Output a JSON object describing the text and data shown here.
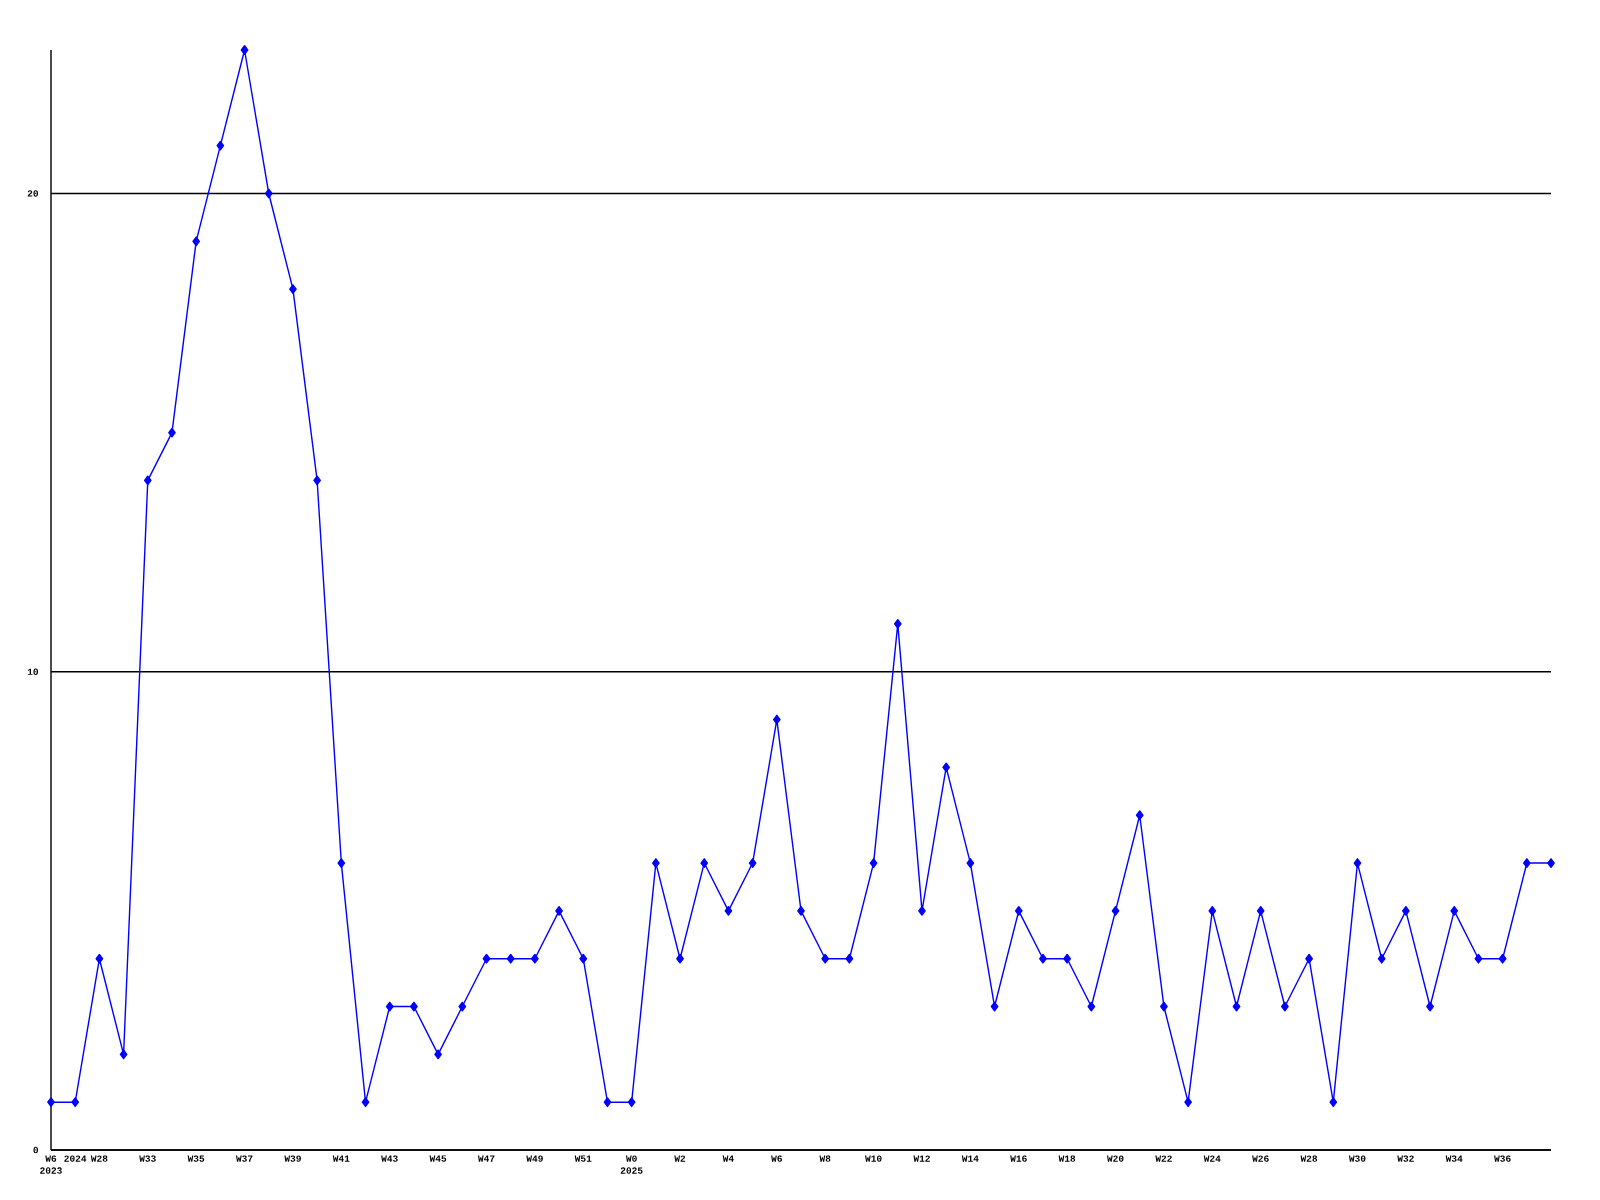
{
  "chart_data": {
    "type": "line",
    "categories": [
      "W6 2023",
      "2024",
      "W28",
      null,
      "W33",
      null,
      "W35",
      null,
      "W37",
      null,
      "W39",
      null,
      "W41",
      null,
      "W43",
      null,
      "W45",
      null,
      "W47",
      null,
      "W49",
      null,
      "W51",
      null,
      "W0 2025",
      null,
      "W2",
      null,
      "W4",
      null,
      "W6",
      null,
      "W8",
      null,
      "W10",
      null,
      "W12",
      null,
      "W14",
      null,
      "W16",
      null,
      "W18",
      null,
      "W20",
      null,
      "W22",
      null,
      "W24",
      null,
      "W26",
      null,
      "W28",
      null,
      "W30",
      null,
      "W32",
      null,
      "W34",
      null,
      "W36",
      null,
      null
    ],
    "values": [
      1,
      1,
      4,
      2,
      14,
      15,
      19,
      21,
      23,
      20,
      18,
      14,
      6,
      1,
      3,
      3,
      2,
      3,
      4,
      4,
      4,
      5,
      4,
      1,
      1,
      6,
      4,
      6,
      5,
      6,
      9,
      5,
      4,
      4,
      6,
      11,
      5,
      8,
      6,
      3,
      5,
      4,
      4,
      3,
      5,
      7,
      3,
      1,
      5,
      3,
      5,
      3,
      4,
      1,
      6,
      4,
      5,
      3,
      5,
      4,
      4,
      6,
      6
    ],
    "color": "#0000ff",
    "marker": "diamond",
    "line_style": "solid",
    "ylim": [
      0,
      23
    ],
    "yticks": [
      0,
      10,
      20
    ],
    "grid": "y"
  }
}
